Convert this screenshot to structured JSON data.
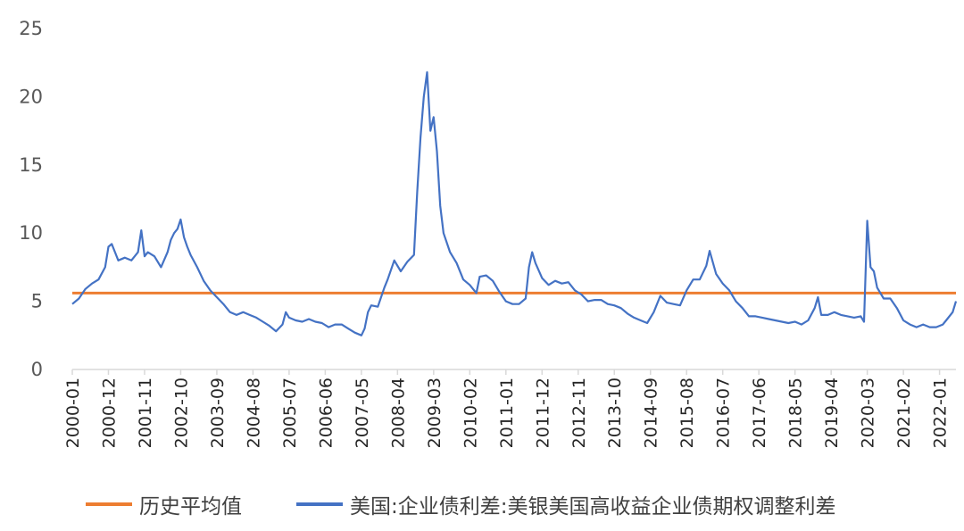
{
  "chart_data": {
    "type": "line",
    "title": "",
    "xlabel": "",
    "ylabel": "",
    "ylim": [
      0,
      25
    ],
    "yticks": [
      0,
      5,
      10,
      15,
      20,
      25
    ],
    "xlim": [
      "2000-01",
      "2022-06"
    ],
    "xtick_labels": [
      "2000-01",
      "2000-12",
      "2001-11",
      "2002-10",
      "2003-09",
      "2004-08",
      "2005-07",
      "2006-06",
      "2007-05",
      "2008-04",
      "2009-03",
      "2010-02",
      "2011-01",
      "2011-12",
      "2012-11",
      "2013-10",
      "2014-09",
      "2015-08",
      "2016-07",
      "2017-06",
      "2018-05",
      "2019-04",
      "2020-03",
      "2021-02",
      "2022-01"
    ],
    "grid": false,
    "legend_position": "bottom",
    "colors": {
      "average": "#ED7D31",
      "spread": "#4472C4",
      "axis": "#D9D9D9"
    },
    "series": [
      {
        "name": "历史平均值",
        "x": [
          "2000-01",
          "2022-06"
        ],
        "values": [
          5.6,
          5.6
        ]
      },
      {
        "name": "美国:企业债利差:美银美国高收益企业债期权调整利差",
        "x": [
          "2000-01",
          "2000-03",
          "2000-05",
          "2000-07",
          "2000-09",
          "2000-11",
          "2000-12",
          "2001-01",
          "2001-03",
          "2001-05",
          "2001-07",
          "2001-09",
          "2001-10",
          "2001-11",
          "2001-12",
          "2002-02",
          "2002-04",
          "2002-06",
          "2002-07",
          "2002-08",
          "2002-09",
          "2002-10",
          "2002-11",
          "2002-12",
          "2003-01",
          "2003-03",
          "2003-05",
          "2003-07",
          "2003-09",
          "2003-11",
          "2004-01",
          "2004-03",
          "2004-05",
          "2004-07",
          "2004-09",
          "2004-11",
          "2005-01",
          "2005-03",
          "2005-05",
          "2005-06",
          "2005-07",
          "2005-09",
          "2005-11",
          "2006-01",
          "2006-03",
          "2006-05",
          "2006-07",
          "2006-09",
          "2006-11",
          "2007-01",
          "2007-03",
          "2007-05",
          "2007-06",
          "2007-07",
          "2007-08",
          "2007-10",
          "2007-12",
          "2008-01",
          "2008-03",
          "2008-05",
          "2008-07",
          "2008-09",
          "2008-10",
          "2008-11",
          "2008-12",
          "2009-01",
          "2009-02",
          "2009-03",
          "2009-04",
          "2009-05",
          "2009-06",
          "2009-08",
          "2009-10",
          "2009-12",
          "2010-02",
          "2010-04",
          "2010-05",
          "2010-07",
          "2010-09",
          "2010-11",
          "2011-01",
          "2011-03",
          "2011-05",
          "2011-07",
          "2011-08",
          "2011-09",
          "2011-10",
          "2011-12",
          "2012-02",
          "2012-04",
          "2012-06",
          "2012-08",
          "2012-10",
          "2012-12",
          "2013-02",
          "2013-04",
          "2013-06",
          "2013-08",
          "2013-10",
          "2013-12",
          "2014-02",
          "2014-04",
          "2014-06",
          "2014-08",
          "2014-10",
          "2014-12",
          "2015-02",
          "2015-04",
          "2015-06",
          "2015-08",
          "2015-10",
          "2015-12",
          "2016-02",
          "2016-03",
          "2016-05",
          "2016-07",
          "2016-09",
          "2016-11",
          "2017-01",
          "2017-03",
          "2017-05",
          "2017-07",
          "2017-09",
          "2017-11",
          "2018-01",
          "2018-03",
          "2018-05",
          "2018-07",
          "2018-09",
          "2018-11",
          "2018-12",
          "2019-01",
          "2019-03",
          "2019-05",
          "2019-07",
          "2019-09",
          "2019-11",
          "2020-01",
          "2020-02",
          "2020-03",
          "2020-04",
          "2020-05",
          "2020-06",
          "2020-08",
          "2020-10",
          "2020-12",
          "2021-02",
          "2021-04",
          "2021-06",
          "2021-08",
          "2021-10",
          "2021-12",
          "2022-02",
          "2022-03",
          "2022-05",
          "2022-06"
        ],
        "values": [
          4.8,
          5.2,
          5.9,
          6.3,
          6.6,
          7.5,
          9.0,
          9.2,
          8.0,
          8.2,
          8.0,
          8.6,
          10.2,
          8.3,
          8.6,
          8.3,
          7.5,
          8.6,
          9.5,
          10.0,
          10.3,
          11.0,
          9.7,
          9.0,
          8.4,
          7.5,
          6.5,
          5.8,
          5.3,
          4.8,
          4.2,
          4.0,
          4.2,
          4.0,
          3.8,
          3.5,
          3.2,
          2.8,
          3.3,
          4.2,
          3.8,
          3.6,
          3.5,
          3.7,
          3.5,
          3.4,
          3.1,
          3.3,
          3.3,
          3.0,
          2.7,
          2.5,
          3.0,
          4.2,
          4.7,
          4.6,
          6.0,
          6.6,
          8.0,
          7.2,
          7.9,
          8.4,
          13.0,
          17.0,
          20.0,
          21.8,
          17.5,
          18.5,
          16.0,
          12.0,
          10.0,
          8.6,
          7.8,
          6.6,
          6.2,
          5.6,
          6.8,
          6.9,
          6.5,
          5.7,
          5.0,
          4.8,
          4.8,
          5.2,
          7.5,
          8.6,
          7.8,
          6.7,
          6.2,
          6.5,
          6.3,
          6.4,
          5.8,
          5.5,
          5.0,
          5.1,
          5.1,
          4.8,
          4.7,
          4.5,
          4.1,
          3.8,
          3.6,
          3.4,
          4.2,
          5.4,
          4.9,
          4.8,
          4.7,
          5.8,
          6.6,
          6.6,
          7.6,
          8.7,
          7.0,
          6.3,
          5.8,
          5.0,
          4.5,
          3.9,
          3.9,
          3.8,
          3.7,
          3.6,
          3.5,
          3.4,
          3.5,
          3.3,
          3.6,
          4.5,
          5.3,
          4.0,
          4.0,
          4.2,
          4.0,
          3.9,
          3.8,
          3.9,
          3.5,
          10.9,
          7.5,
          7.2,
          6.0,
          5.2,
          5.2,
          4.5,
          3.6,
          3.3,
          3.1,
          3.3,
          3.1,
          3.1,
          3.3,
          3.6,
          4.2,
          5.0
        ]
      }
    ]
  }
}
